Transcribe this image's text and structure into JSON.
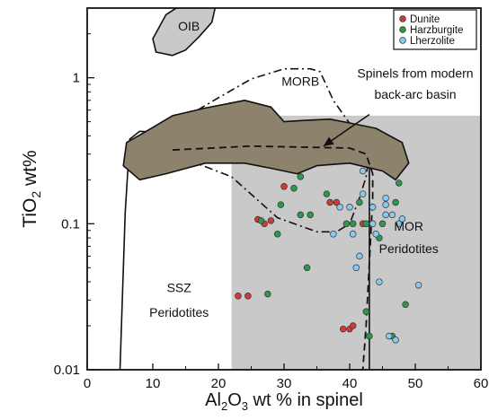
{
  "chart_data": {
    "type": "scatter",
    "title": "",
    "xlabel": "Al2O3 wt % in spinel",
    "xlabel_parts": [
      {
        "text": "Al",
        "sub": false
      },
      {
        "text": "2",
        "sub": true
      },
      {
        "text": "O",
        "sub": false
      },
      {
        "text": "3",
        "sub": true
      },
      {
        "text": " wt % in spinel",
        "sub": false
      }
    ],
    "ylabel": "TiO2 wt%",
    "ylabel_parts": [
      {
        "text": "TiO",
        "sub": false
      },
      {
        "text": "2",
        "sub": true
      },
      {
        "text": " wt%",
        "sub": false
      }
    ],
    "xlim": [
      0,
      60
    ],
    "ylim": [
      0.01,
      3
    ],
    "y_scale": "log",
    "grid": false,
    "legend_position": "top-right",
    "x_ticks": [
      {
        "value": 0,
        "label": "0"
      },
      {
        "value": 10,
        "label": "10"
      },
      {
        "value": 20,
        "label": "20"
      },
      {
        "value": 30,
        "label": "30"
      },
      {
        "value": 40,
        "label": "40"
      },
      {
        "value": 50,
        "label": "50"
      },
      {
        "value": 60,
        "label": "60"
      }
    ],
    "y_ticks": [
      {
        "value": 0.01,
        "label": "0.01"
      },
      {
        "value": 0.1,
        "label": "0.1"
      },
      {
        "value": 1,
        "label": "1"
      }
    ],
    "series": [
      {
        "name": "Dunite",
        "color": "#d23a3a",
        "points": [
          [
            23.0,
            0.032
          ],
          [
            24.5,
            0.032
          ],
          [
            26.0,
            0.107
          ],
          [
            27.0,
            0.1
          ],
          [
            28.0,
            0.105
          ],
          [
            30.0,
            0.18
          ],
          [
            37.0,
            0.14
          ],
          [
            38.0,
            0.14
          ],
          [
            39.0,
            0.019
          ],
          [
            40.0,
            0.019
          ],
          [
            40.5,
            0.02
          ],
          [
            42.0,
            0.1
          ]
        ]
      },
      {
        "name": "Harzburgite",
        "color": "#2a9a4c",
        "points": [
          [
            26.5,
            0.105
          ],
          [
            27.5,
            0.033
          ],
          [
            29.0,
            0.085
          ],
          [
            29.5,
            0.135
          ],
          [
            31.5,
            0.175
          ],
          [
            32.5,
            0.21
          ],
          [
            32.5,
            0.115
          ],
          [
            33.5,
            0.05
          ],
          [
            34.0,
            0.115
          ],
          [
            36.5,
            0.16
          ],
          [
            39.5,
            0.1
          ],
          [
            40.5,
            0.1
          ],
          [
            41.5,
            0.14
          ],
          [
            42.5,
            0.1
          ],
          [
            42.5,
            0.025
          ],
          [
            43.0,
            0.017
          ],
          [
            44.5,
            0.08
          ],
          [
            45.0,
            0.1
          ],
          [
            46.5,
            0.017
          ],
          [
            47.0,
            0.14
          ],
          [
            47.5,
            0.19
          ],
          [
            48.5,
            0.028
          ]
        ]
      },
      {
        "name": "Lherzolite",
        "color": "#8cc8ee",
        "points": [
          [
            37.5,
            0.085
          ],
          [
            38.5,
            0.13
          ],
          [
            40.0,
            0.13
          ],
          [
            40.5,
            0.085
          ],
          [
            41.0,
            0.05
          ],
          [
            41.5,
            0.06
          ],
          [
            42.0,
            0.16
          ],
          [
            42.0,
            0.23
          ],
          [
            43.5,
            0.13
          ],
          [
            43.5,
            0.1
          ],
          [
            44.0,
            0.085
          ],
          [
            44.5,
            0.04
          ],
          [
            45.5,
            0.135
          ],
          [
            45.5,
            0.15
          ],
          [
            45.5,
            0.115
          ],
          [
            46.0,
            0.017
          ],
          [
            46.5,
            0.115
          ],
          [
            47.0,
            0.016
          ],
          [
            47.5,
            0.1
          ],
          [
            48.0,
            0.108
          ],
          [
            50.5,
            0.038
          ]
        ]
      }
    ],
    "annotations": [
      {
        "text": "OIB",
        "x": 15.5,
        "y": 2.1
      },
      {
        "text": "MORB",
        "x": 32.5,
        "y": 0.88
      },
      {
        "text": "Spinels from modern",
        "x": 50.0,
        "y": 1.0
      },
      {
        "text": "back-arc basin",
        "x": 50.0,
        "y": 0.72
      },
      {
        "text": "MOR",
        "x": 49.0,
        "y": 0.09
      },
      {
        "text": "Peridotites",
        "x": 49.0,
        "y": 0.063
      },
      {
        "text": "SSZ",
        "x": 14.0,
        "y": 0.034
      },
      {
        "text": "Peridotites",
        "x": 14.0,
        "y": 0.023
      }
    ],
    "fields": [
      {
        "name": "MOR Peridotites",
        "style": "gray-box",
        "fill": "#c9c9c9",
        "x": [
          22,
          60
        ],
        "y": [
          0.01,
          0.55
        ]
      },
      {
        "name": "SSZ Peridotites",
        "style": "solid-outline",
        "vertices": [
          [
            5.0,
            0.01
          ],
          [
            5.8,
            0.12
          ],
          [
            6.5,
            0.38
          ],
          [
            8.0,
            0.43
          ],
          [
            20.0,
            0.4
          ],
          [
            30.0,
            0.37
          ],
          [
            36.0,
            0.37
          ],
          [
            41.0,
            0.37
          ],
          [
            43.0,
            0.36
          ],
          [
            43.0,
            0.01
          ]
        ]
      },
      {
        "name": "MORB",
        "style": "dash-dot-outline",
        "vertices": [
          [
            12.0,
            0.33
          ],
          [
            14.5,
            0.52
          ],
          [
            20.0,
            0.73
          ],
          [
            25.0,
            0.98
          ],
          [
            30.0,
            1.15
          ],
          [
            34.0,
            1.15
          ],
          [
            35.5,
            1.1
          ],
          [
            37.5,
            0.7
          ],
          [
            41.0,
            0.42
          ],
          [
            43.0,
            0.31
          ],
          [
            42.5,
            0.21
          ],
          [
            41.5,
            0.15
          ],
          [
            40.0,
            0.1
          ],
          [
            38.0,
            0.088
          ],
          [
            35.0,
            0.088
          ],
          [
            29.0,
            0.11
          ],
          [
            22.0,
            0.21
          ],
          [
            13.0,
            0.3
          ]
        ]
      },
      {
        "name": "Spinels from modern back-arc basin",
        "style": "brown-fill",
        "fill": "#8d826c",
        "vertices": [
          [
            5.5,
            0.25
          ],
          [
            6.0,
            0.36
          ],
          [
            9.0,
            0.43
          ],
          [
            13.0,
            0.55
          ],
          [
            18.0,
            0.62
          ],
          [
            24.0,
            0.7
          ],
          [
            28.0,
            0.63
          ],
          [
            30.0,
            0.5
          ],
          [
            33.0,
            0.51
          ],
          [
            37.0,
            0.52
          ],
          [
            40.0,
            0.49
          ],
          [
            44.0,
            0.45
          ],
          [
            48.0,
            0.36
          ],
          [
            49.0,
            0.26
          ],
          [
            47.0,
            0.2
          ],
          [
            45.0,
            0.23
          ],
          [
            40.0,
            0.26
          ],
          [
            35.0,
            0.25
          ],
          [
            32.0,
            0.22
          ],
          [
            28.0,
            0.24
          ],
          [
            24.0,
            0.26
          ],
          [
            18.0,
            0.26
          ],
          [
            12.0,
            0.22
          ],
          [
            8.0,
            0.2
          ]
        ]
      },
      {
        "name": "OIB",
        "style": "gray-fill",
        "fill": "#c9c9c9",
        "vertices": [
          [
            10.0,
            1.85
          ],
          [
            12.0,
            2.7
          ],
          [
            15.0,
            3.3
          ],
          [
            18.0,
            3.5
          ],
          [
            19.5,
            3.0
          ],
          [
            19.0,
            2.4
          ],
          [
            17.0,
            1.9
          ],
          [
            15.0,
            1.55
          ],
          [
            13.0,
            1.42
          ],
          [
            10.5,
            1.5
          ]
        ]
      }
    ],
    "lines": [
      {
        "name": "dashed-trend",
        "style": "dashed",
        "vertices": [
          [
            13.0,
            0.32
          ],
          [
            25.0,
            0.34
          ],
          [
            40.0,
            0.33
          ],
          [
            42.5,
            0.3
          ],
          [
            43.5,
            0.22
          ],
          [
            43.5,
            0.15
          ],
          [
            42.5,
            0.02
          ],
          [
            42.0,
            0.01
          ]
        ]
      }
    ],
    "arrow": {
      "from": [
        43.0,
        0.56
      ],
      "to": [
        36.0,
        0.34
      ]
    }
  }
}
